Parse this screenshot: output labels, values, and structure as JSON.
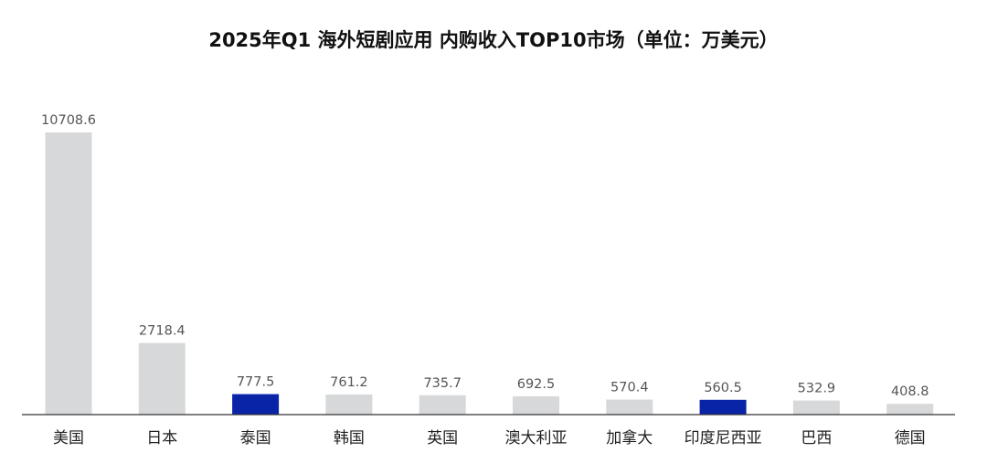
{
  "chart_data": {
    "type": "bar",
    "title": "2025年Q1 海外短剧应用 内购收入TOP10市场（单位：万美元）",
    "categories": [
      "美国",
      "日本",
      "泰国",
      "韩国",
      "英国",
      "澳大利亚",
      "加拿大",
      "印度尼西亚",
      "巴西",
      "德国"
    ],
    "values": [
      10708.6,
      2718.4,
      777.5,
      761.2,
      735.7,
      692.5,
      570.4,
      560.5,
      532.9,
      408.8
    ],
    "value_labels": [
      "10708.6",
      "2718.4",
      "777.5",
      "761.2",
      "735.7",
      "692.5",
      "570.4",
      "560.5",
      "532.9",
      "408.8"
    ],
    "highlighted": [
      "泰国",
      "印度尼西亚"
    ],
    "ylim": [
      0,
      10708.6
    ],
    "grid": false,
    "legend": "none",
    "colors": {
      "default_bar": "#d7d8da",
      "highlight_bar": "#0a24a8",
      "axis": "#333333"
    }
  }
}
